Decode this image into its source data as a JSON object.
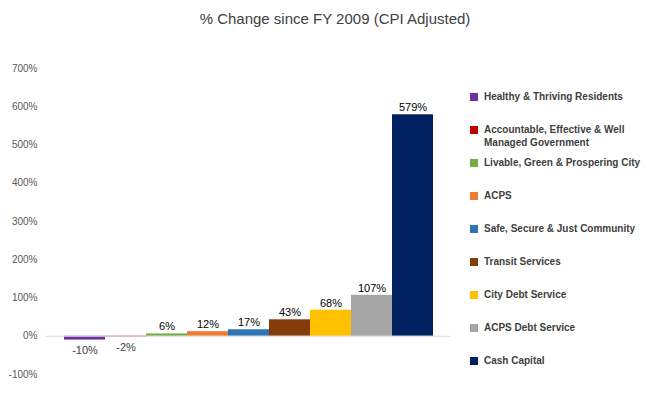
{
  "chart_data": {
    "type": "bar",
    "title": "% Change since FY 2009 (CPI Adjusted)",
    "categories": [
      "Healthy & Thriving Residents",
      "Accountable, Effective & Well Managed Government",
      "Livable, Green & Prospering City",
      "ACPS",
      "Safe, Secure & Just Community",
      "Transit Services",
      "City Debt Service",
      "ACPS Debt Service",
      "Cash Capital"
    ],
    "values": [
      -10,
      -2,
      6,
      12,
      17,
      43,
      68,
      107,
      579
    ],
    "value_labels": [
      "-10%",
      "-2%",
      "6%",
      "12%",
      "17%",
      "43%",
      "68%",
      "107%",
      "579%"
    ],
    "colors": [
      "#7030a0",
      "#c00000",
      "#70ad47",
      "#ed7d31",
      "#2e75b6",
      "#843c0c",
      "#ffc000",
      "#a5a5a5",
      "#002060"
    ],
    "ylim": [
      -100,
      700
    ],
    "yticks": [
      {
        "value": -100,
        "label": "-100%"
      },
      {
        "value": 0,
        "label": "0%"
      },
      {
        "value": 100,
        "label": "100%"
      },
      {
        "value": 200,
        "label": "200%"
      },
      {
        "value": 300,
        "label": "300%"
      },
      {
        "value": 400,
        "label": "400%"
      },
      {
        "value": 500,
        "label": "500%"
      },
      {
        "value": 600,
        "label": "600%"
      },
      {
        "value": 700,
        "label": "700%"
      }
    ],
    "grid": false,
    "legend": "right",
    "data_labels": true,
    "tick_labels": "y"
  }
}
